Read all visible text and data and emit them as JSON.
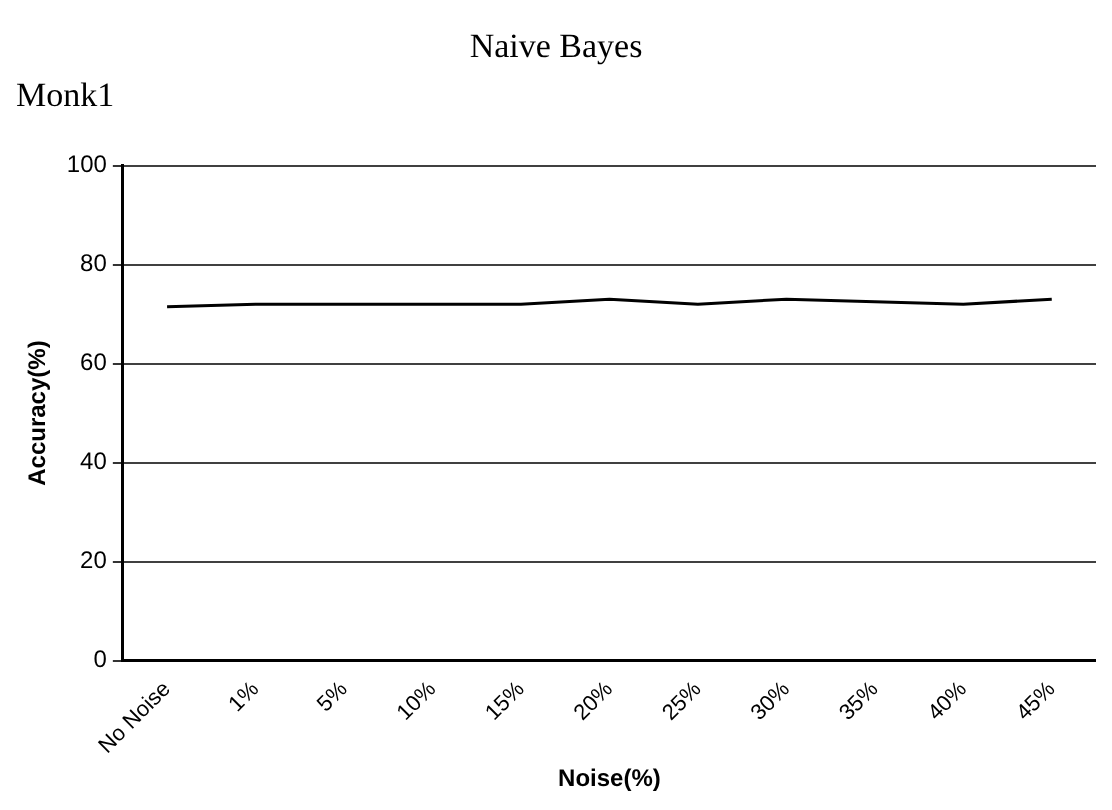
{
  "chart_data": {
    "type": "line",
    "title": "Naive Bayes",
    "subtitle": "Monk1",
    "xlabel": "Noise(%)",
    "ylabel": "Accuracy(%)",
    "categories": [
      "No Noise",
      "1%",
      "5%",
      "10%",
      "15%",
      "20%",
      "25%",
      "30%",
      "35%",
      "40%",
      "45%"
    ],
    "series": [
      {
        "color": "#000000",
        "values": [
          71.5,
          72,
          72,
          72,
          72,
          73,
          72,
          73,
          72.5,
          72,
          73
        ]
      }
    ],
    "ylim": [
      0,
      100
    ],
    "yticks": [
      0,
      20,
      40,
      60,
      80,
      100
    ],
    "grid": "y",
    "legend": false,
    "marker": "none",
    "line_style": "solid"
  }
}
